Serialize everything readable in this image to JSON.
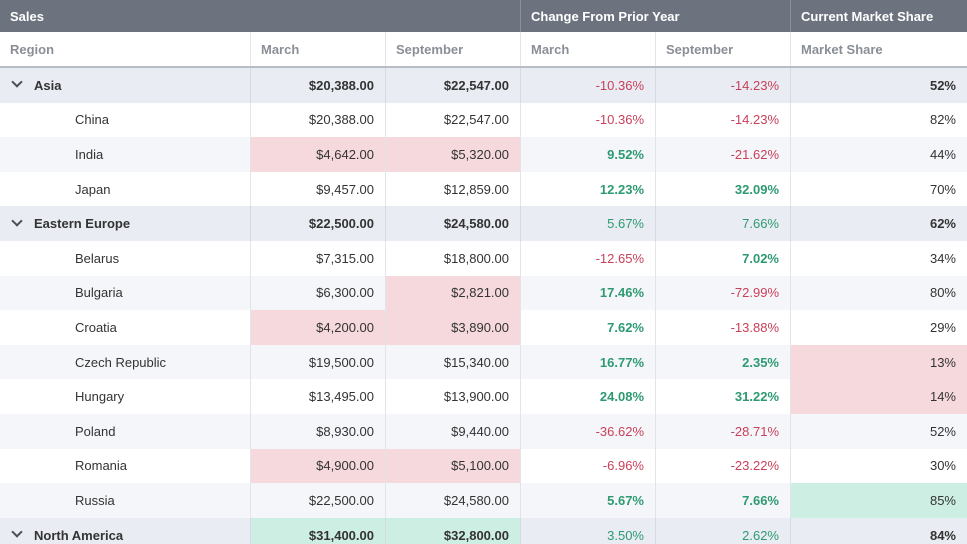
{
  "bands": {
    "sales": "Sales",
    "change": "Change From Prior Year",
    "share": "Current Market Share"
  },
  "headers": {
    "region": "Region",
    "march": "March",
    "september": "September",
    "change_march": "March",
    "change_september": "September",
    "market_share": "Market Share"
  },
  "rows": [
    {
      "type": "group",
      "region": "Asia",
      "march": "$20,388.00",
      "september": "$22,547.00",
      "chg_march": "-10.36%",
      "chg_sept": "-14.23%",
      "share": "52%"
    },
    {
      "type": "child",
      "region": "China",
      "march": "$20,388.00",
      "september": "$22,547.00",
      "chg_march": "-10.36%",
      "chg_sept": "-14.23%",
      "share": "82%"
    },
    {
      "type": "child",
      "region": "India",
      "march": "$4,642.00",
      "september": "$5,320.00",
      "chg_march": "9.52%",
      "chg_sept": "-21.62%",
      "share": "44%"
    },
    {
      "type": "child",
      "region": "Japan",
      "march": "$9,457.00",
      "september": "$12,859.00",
      "chg_march": "12.23%",
      "chg_sept": "32.09%",
      "share": "70%"
    },
    {
      "type": "group",
      "region": "Eastern Europe",
      "march": "$22,500.00",
      "september": "$24,580.00",
      "chg_march": "5.67%",
      "chg_sept": "7.66%",
      "share": "62%"
    },
    {
      "type": "child",
      "region": "Belarus",
      "march": "$7,315.00",
      "september": "$18,800.00",
      "chg_march": "-12.65%",
      "chg_sept": "7.02%",
      "share": "34%"
    },
    {
      "type": "child",
      "region": "Bulgaria",
      "march": "$6,300.00",
      "september": "$2,821.00",
      "chg_march": "17.46%",
      "chg_sept": "-72.99%",
      "share": "80%"
    },
    {
      "type": "child",
      "region": "Croatia",
      "march": "$4,200.00",
      "september": "$3,890.00",
      "chg_march": "7.62%",
      "chg_sept": "-13.88%",
      "share": "29%"
    },
    {
      "type": "child",
      "region": "Czech Republic",
      "march": "$19,500.00",
      "september": "$15,340.00",
      "chg_march": "16.77%",
      "chg_sept": "2.35%",
      "share": "13%"
    },
    {
      "type": "child",
      "region": "Hungary",
      "march": "$13,495.00",
      "september": "$13,900.00",
      "chg_march": "24.08%",
      "chg_sept": "31.22%",
      "share": "14%"
    },
    {
      "type": "child",
      "region": "Poland",
      "march": "$8,930.00",
      "september": "$9,440.00",
      "chg_march": "-36.62%",
      "chg_sept": "-28.71%",
      "share": "52%"
    },
    {
      "type": "child",
      "region": "Romania",
      "march": "$4,900.00",
      "september": "$5,100.00",
      "chg_march": "-6.96%",
      "chg_sept": "-23.22%",
      "share": "30%"
    },
    {
      "type": "child",
      "region": "Russia",
      "march": "$22,500.00",
      "september": "$24,580.00",
      "chg_march": "5.67%",
      "chg_sept": "7.66%",
      "share": "85%"
    },
    {
      "type": "group",
      "region": "North America",
      "march": "$31,400.00",
      "september": "$32,800.00",
      "chg_march": "3.50%",
      "chg_sept": "2.62%",
      "share": "84%"
    }
  ],
  "colors": {
    "band": "#6c737e",
    "group_row": "#e9ecf3",
    "negative": "#c9405a",
    "positive": "#2e9a72",
    "highlight_low": "#f6d9dd",
    "highlight_high": "#cdeee3"
  }
}
